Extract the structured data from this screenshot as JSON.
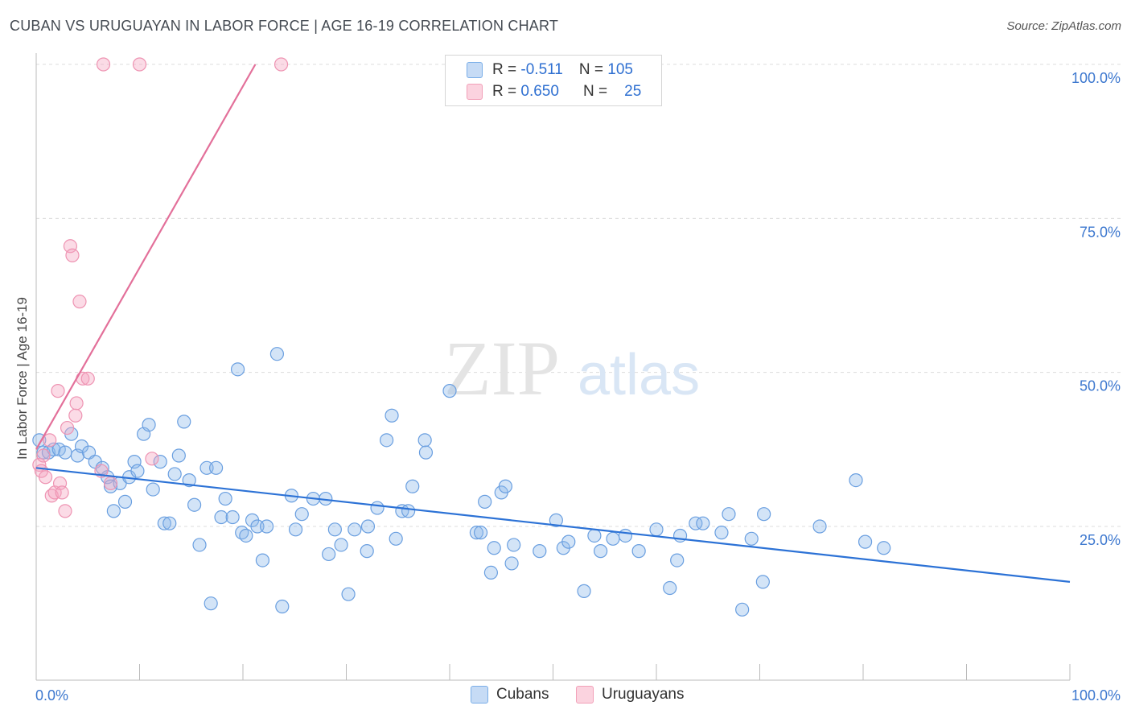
{
  "header": {
    "title": "CUBAN VS URUGUAYAN IN LABOR FORCE | AGE 16-19 CORRELATION CHART",
    "source": "Source: ZipAtlas.com"
  },
  "watermark": {
    "zip": "ZIP",
    "atlas": "atlas"
  },
  "legend": {
    "rows": [
      {
        "r_label": "R =",
        "r_value": "-0.511",
        "n_label": "N =",
        "n_value": "105",
        "color": "#7aaee8"
      },
      {
        "r_label": "R =",
        "r_value": "0.650",
        "n_label": "N =",
        "n_value": "25",
        "color": "#f2a0b8"
      }
    ]
  },
  "bottom_legend": {
    "items": [
      {
        "label": "Cubans",
        "color": "#7aaee8"
      },
      {
        "label": "Uruguayans",
        "color": "#f2a0b8"
      }
    ]
  },
  "chart_data": {
    "type": "scatter",
    "title": "CUBAN VS URUGUAYAN IN LABOR FORCE | AGE 16-19 CORRELATION CHART",
    "ylabel": "In Labor Force | Age 16-19",
    "xlabel": "",
    "xlim": [
      0,
      100
    ],
    "ylim": [
      5,
      102
    ],
    "x_tick_labels": [
      "0.0%",
      "100.0%"
    ],
    "y_tick_labels": [
      {
        "value": 100,
        "label": "100.0%"
      },
      {
        "value": 75,
        "label": "75.0%"
      },
      {
        "value": 50,
        "label": "50.0%"
      },
      {
        "value": 25,
        "label": "25.0%"
      }
    ],
    "grid": true,
    "legend_position": "top-center",
    "series": [
      {
        "name": "Cubans",
        "color": "#5b9be6",
        "trend": {
          "x": [
            0,
            100
          ],
          "y": [
            34.5,
            16.0
          ]
        },
        "points": [
          [
            0.3,
            39
          ],
          [
            0.7,
            37
          ],
          [
            1.2,
            37
          ],
          [
            1.7,
            37.5
          ],
          [
            2.2,
            37.5
          ],
          [
            2.8,
            37
          ],
          [
            3.4,
            40
          ],
          [
            4.0,
            36.5
          ],
          [
            4.4,
            38
          ],
          [
            5.1,
            37
          ],
          [
            5.7,
            35.5
          ],
          [
            6.4,
            34.5
          ],
          [
            6.9,
            33
          ],
          [
            7.2,
            31.5
          ],
          [
            7.5,
            27.5
          ],
          [
            8.1,
            32
          ],
          [
            8.6,
            29
          ],
          [
            9.0,
            33
          ],
          [
            9.5,
            35.5
          ],
          [
            9.8,
            34
          ],
          [
            10.4,
            40
          ],
          [
            10.9,
            41.5
          ],
          [
            11.3,
            31
          ],
          [
            12.0,
            35.5
          ],
          [
            12.4,
            25.5
          ],
          [
            12.9,
            25.5
          ],
          [
            13.4,
            33.5
          ],
          [
            13.8,
            36.5
          ],
          [
            14.3,
            42
          ],
          [
            14.8,
            32.5
          ],
          [
            15.3,
            28.5
          ],
          [
            15.8,
            22
          ],
          [
            16.5,
            34.5
          ],
          [
            16.9,
            12.5
          ],
          [
            17.4,
            34.5
          ],
          [
            17.9,
            26.5
          ],
          [
            18.3,
            29.5
          ],
          [
            19.0,
            26.5
          ],
          [
            19.5,
            50.5
          ],
          [
            19.9,
            24
          ],
          [
            20.3,
            23.5
          ],
          [
            20.9,
            26
          ],
          [
            21.4,
            25
          ],
          [
            21.9,
            19.5
          ],
          [
            22.3,
            25
          ],
          [
            23.3,
            53
          ],
          [
            23.8,
            12
          ],
          [
            24.7,
            30
          ],
          [
            25.1,
            24.5
          ],
          [
            25.7,
            27
          ],
          [
            26.8,
            29.5
          ],
          [
            28.0,
            29.5
          ],
          [
            28.3,
            20.5
          ],
          [
            28.9,
            24.5
          ],
          [
            29.5,
            22
          ],
          [
            30.2,
            14
          ],
          [
            30.8,
            24.5
          ],
          [
            32.0,
            21
          ],
          [
            32.1,
            25
          ],
          [
            33.0,
            28
          ],
          [
            33.9,
            39
          ],
          [
            34.4,
            43
          ],
          [
            34.8,
            23
          ],
          [
            35.4,
            27.5
          ],
          [
            36.0,
            27.5
          ],
          [
            36.4,
            31.5
          ],
          [
            37.6,
            39
          ],
          [
            37.7,
            37
          ],
          [
            40.0,
            47
          ],
          [
            42.6,
            24
          ],
          [
            43.0,
            24
          ],
          [
            43.4,
            29
          ],
          [
            44.0,
            17.5
          ],
          [
            44.3,
            21.5
          ],
          [
            45.0,
            30.5
          ],
          [
            45.4,
            31.5
          ],
          [
            46.0,
            19
          ],
          [
            46.2,
            22
          ],
          [
            48.7,
            21
          ],
          [
            50.3,
            26
          ],
          [
            51.0,
            21.5
          ],
          [
            51.5,
            22.5
          ],
          [
            53.0,
            14.5
          ],
          [
            54.0,
            23.5
          ],
          [
            54.6,
            21
          ],
          [
            55.8,
            23
          ],
          [
            57.0,
            23.5
          ],
          [
            58.3,
            21
          ],
          [
            60.0,
            24.5
          ],
          [
            61.3,
            15
          ],
          [
            62.0,
            19.5
          ],
          [
            62.3,
            23.5
          ],
          [
            63.8,
            25.5
          ],
          [
            64.5,
            25.5
          ],
          [
            66.3,
            24
          ],
          [
            67.0,
            27
          ],
          [
            68.3,
            11.5
          ],
          [
            69.2,
            23
          ],
          [
            70.3,
            16
          ],
          [
            70.4,
            27
          ],
          [
            75.8,
            25
          ],
          [
            79.3,
            32.5
          ],
          [
            80.2,
            22.5
          ],
          [
            82.0,
            21.5
          ]
        ]
      },
      {
        "name": "Uruguayans",
        "color": "#f08fb0",
        "trend": {
          "x": [
            0,
            21.2
          ],
          "y": [
            37.5,
            100
          ]
        },
        "points": [
          [
            0.3,
            35
          ],
          [
            0.5,
            34
          ],
          [
            0.7,
            36.5
          ],
          [
            0.9,
            33
          ],
          [
            1.3,
            39
          ],
          [
            1.5,
            30
          ],
          [
            1.8,
            30.5
          ],
          [
            2.1,
            47
          ],
          [
            2.3,
            32
          ],
          [
            2.5,
            30.5
          ],
          [
            2.8,
            27.5
          ],
          [
            3.0,
            41
          ],
          [
            3.3,
            70.5
          ],
          [
            3.5,
            69
          ],
          [
            3.8,
            43
          ],
          [
            3.9,
            45
          ],
          [
            4.2,
            61.5
          ],
          [
            4.5,
            49
          ],
          [
            5.0,
            49
          ],
          [
            6.3,
            34
          ],
          [
            7.2,
            32
          ],
          [
            11.2,
            36
          ],
          [
            6.5,
            100
          ],
          [
            10.0,
            100
          ],
          [
            23.7,
            100
          ]
        ]
      }
    ]
  }
}
